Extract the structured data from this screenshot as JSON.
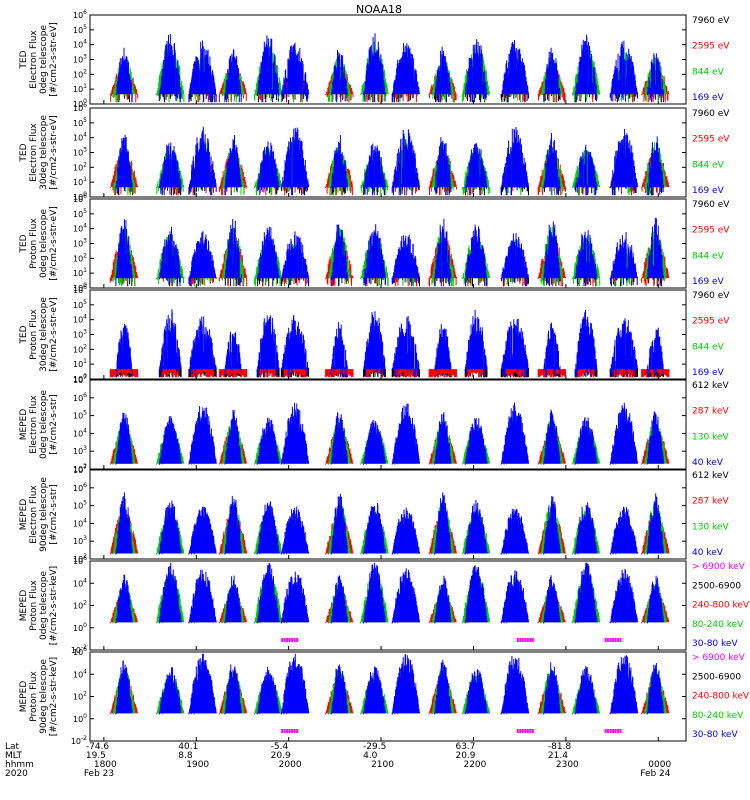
{
  "chart_data": {
    "type": "line",
    "title": "NOAA18",
    "time_axis": {
      "rows": [
        {
          "label": "Lat",
          "values": [
            "-74.6",
            "40.1",
            "-5.4",
            "-29.5",
            "63.7",
            "-81.8"
          ]
        },
        {
          "label": "MLT",
          "values": [
            "19.5",
            "8.8",
            "20.9",
            "4.0",
            "20.9",
            "21.4"
          ]
        },
        {
          "label": "hhmm",
          "values": [
            "1800",
            "1900",
            "2000",
            "2100",
            "2200",
            "2300",
            "0000"
          ]
        },
        {
          "label": "2020",
          "values": [
            "Feb 23",
            "Feb 24"
          ]
        }
      ],
      "hours": [
        18,
        19,
        20,
        21,
        22,
        23,
        24
      ]
    },
    "panels": [
      {
        "ylabel": [
          "TED",
          "Electron Flux",
          "0deg telescope",
          "[#/cm2-s-str-eV]"
        ],
        "ylim_exp": [
          0,
          6
        ],
        "tick_exps": [
          0,
          1,
          2,
          3,
          4,
          5,
          6
        ],
        "legend": [
          {
            "text": "7960 eV",
            "color": "#000000"
          },
          {
            "text": "2595 eV",
            "color": "#ff0000"
          },
          {
            "text": "844 eV",
            "color": "#00cc00"
          },
          {
            "text": "169 eV",
            "color": "#0000ff"
          }
        ]
      },
      {
        "ylabel": [
          "TED",
          "Electron Flux",
          "30deg telescope",
          "[#/cm2-s-str-eV]"
        ],
        "ylim_exp": [
          0,
          6
        ],
        "tick_exps": [
          0,
          1,
          2,
          3,
          4,
          5,
          6
        ],
        "legend": [
          {
            "text": "7960 eV",
            "color": "#000000"
          },
          {
            "text": "2595 eV",
            "color": "#ff0000"
          },
          {
            "text": "844 eV",
            "color": "#00cc00"
          },
          {
            "text": "169 eV",
            "color": "#0000ff"
          }
        ]
      },
      {
        "ylabel": [
          "TED",
          "Proton Flux",
          "0deg telescope",
          "[#/cm2-s-str-eV]"
        ],
        "ylim_exp": [
          0,
          6
        ],
        "tick_exps": [
          0,
          1,
          2,
          3,
          4,
          5,
          6
        ],
        "legend": [
          {
            "text": "7960 eV",
            "color": "#000000"
          },
          {
            "text": "2595 eV",
            "color": "#ff0000"
          },
          {
            "text": "844 eV",
            "color": "#00cc00"
          },
          {
            "text": "169 eV",
            "color": "#0000ff"
          }
        ]
      },
      {
        "ylabel": [
          "TED",
          "Proton Flux",
          "30deg telescope",
          "[#/cm2-s-str-eV]"
        ],
        "ylim_exp": [
          0,
          6
        ],
        "tick_exps": [
          0,
          1,
          2,
          3,
          4,
          5,
          6
        ],
        "legend": [
          {
            "text": "7960 eV",
            "color": "#000000"
          },
          {
            "text": "2595 eV",
            "color": "#ff0000"
          },
          {
            "text": "844 eV",
            "color": "#00cc00"
          },
          {
            "text": "169 eV",
            "color": "#0000ff"
          }
        ]
      },
      {
        "ylabel": [
          "MEPED",
          "Electron Flux",
          "0deg telescope",
          "[#/cm2-s-str]"
        ],
        "ylim_exp": [
          2,
          7
        ],
        "tick_exps": [
          2,
          3,
          4,
          5,
          6,
          7
        ],
        "legend": [
          {
            "text": "612 keV",
            "color": "#000000"
          },
          {
            "text": "287 keV",
            "color": "#ff0000"
          },
          {
            "text": "130 keV",
            "color": "#00cc00"
          },
          {
            "text": "40 keV",
            "color": "#0000ff"
          }
        ]
      },
      {
        "ylabel": [
          "MEPED",
          "Electron Flux",
          "90deg telescope",
          "[#/cm2-s-str]"
        ],
        "ylim_exp": [
          2,
          7
        ],
        "tick_exps": [
          2,
          3,
          4,
          5,
          6,
          7
        ],
        "legend": [
          {
            "text": "612 keV",
            "color": "#000000"
          },
          {
            "text": "287 keV",
            "color": "#ff0000"
          },
          {
            "text": "130 keV",
            "color": "#00cc00"
          },
          {
            "text": "40 keV",
            "color": "#0000ff"
          }
        ]
      },
      {
        "ylabel": [
          "MEPED",
          "Proton Flux",
          "0deg telescope",
          "[#/cm2-s-str-keV]"
        ],
        "ylim_exp": [
          -2,
          6
        ],
        "tick_exps": [
          -2,
          0,
          2,
          4,
          6
        ],
        "legend": [
          {
            "text": "> 6900 keV",
            "color": "#ff00ff"
          },
          {
            "text": "2500-6900",
            "color": "#000000"
          },
          {
            "text": "240-800 keV",
            "color": "#ff0000"
          },
          {
            "text": "80-240 keV",
            "color": "#00cc00"
          },
          {
            "text": "30-80 keV",
            "color": "#0000ff"
          }
        ]
      },
      {
        "ylabel": [
          "MEPED",
          "Proton Flux",
          "90deg telescope",
          "[#/cm2-s-str-keV]"
        ],
        "ylim_exp": [
          -2,
          6
        ],
        "tick_exps": [
          -2,
          0,
          2,
          4,
          6
        ],
        "legend": [
          {
            "text": "> 6900 keV",
            "color": "#ff00ff"
          },
          {
            "text": "2500-6900",
            "color": "#000000"
          },
          {
            "text": "240-800 keV",
            "color": "#ff0000"
          },
          {
            "text": "80-240 keV",
            "color": "#00cc00"
          },
          {
            "text": "30-80 keV",
            "color": "#0000ff"
          }
        ]
      }
    ],
    "passes_hours": [
      18.22,
      18.72,
      19.07,
      19.4,
      19.78,
      20.07,
      20.55,
      20.93,
      21.27,
      21.67,
      22.03,
      22.45,
      22.85,
      23.22,
      23.63,
      23.97
    ]
  }
}
